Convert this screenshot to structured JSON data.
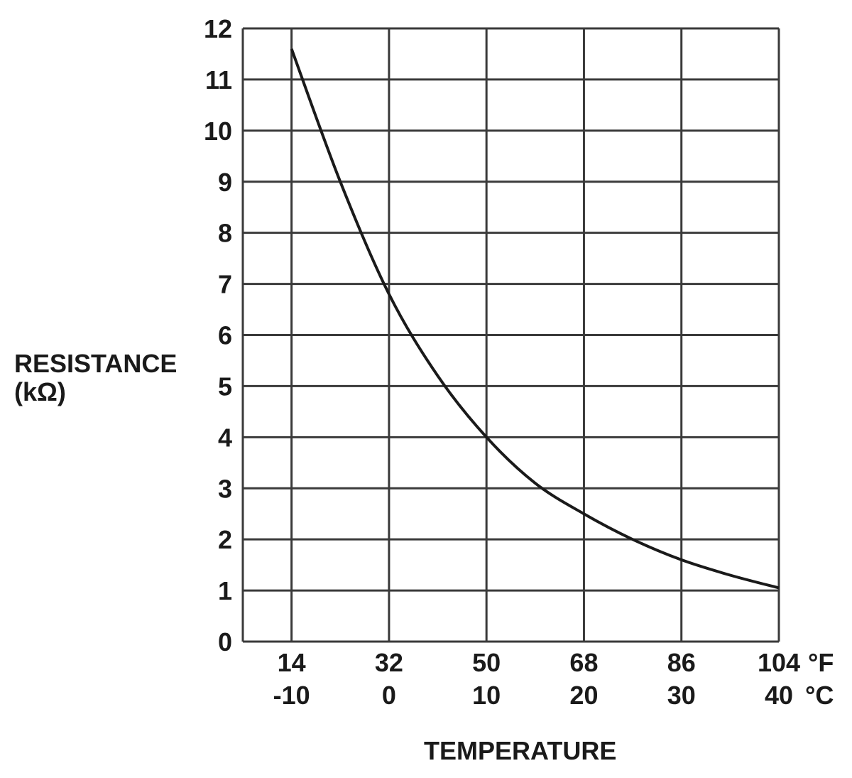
{
  "chart_data": {
    "type": "line",
    "title": "",
    "ylabel_line1": "RESISTANCE",
    "ylabel_line2": "(kΩ)",
    "xlabel": "TEMPERATURE",
    "x_unit_f": "°F",
    "x_unit_c": "°C",
    "x_ticks_f": [
      "14",
      "32",
      "50",
      "68",
      "86",
      "104"
    ],
    "x_ticks_c": [
      "-10",
      "0",
      "10",
      "20",
      "30",
      "40"
    ],
    "y_ticks": [
      "0",
      "1",
      "2",
      "3",
      "4",
      "5",
      "6",
      "7",
      "8",
      "9",
      "10",
      "11",
      "12"
    ],
    "xlim_c": [
      -15,
      40
    ],
    "ylim": [
      0,
      12
    ],
    "grid": true,
    "series": [
      {
        "x_c": [
          -10,
          -5,
          0,
          5,
          10,
          15,
          20,
          25,
          30,
          35,
          40
        ],
        "y": [
          11.6,
          9.0,
          6.8,
          5.2,
          4.0,
          3.1,
          2.5,
          2.0,
          1.6,
          1.3,
          1.05
        ]
      }
    ],
    "line_color": "#1a1a1a",
    "grid_color": "#3a3a3a"
  }
}
